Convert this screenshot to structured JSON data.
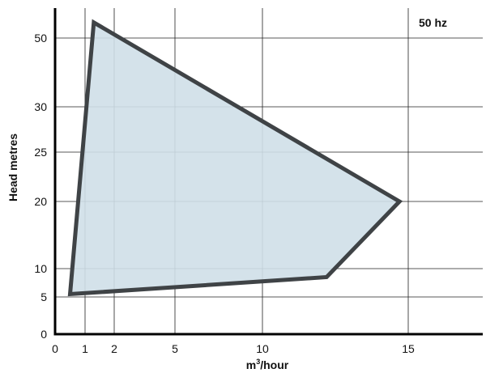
{
  "chart_data": {
    "type": "area",
    "title": "",
    "annotation": "50 hz",
    "xlabel_base": "m",
    "xlabel_sup": "3",
    "xlabel_rest": "/hour",
    "ylabel": "Head metres",
    "x_ticks": [
      0,
      1,
      2,
      5,
      10,
      15
    ],
    "y_ticks": [
      0,
      5,
      10,
      20,
      25,
      30,
      50
    ],
    "grid": true,
    "series": [
      {
        "points": [
          {
            "x": 1.3,
            "y": 53
          },
          {
            "x": 14.7,
            "y": 20
          },
          {
            "x": 12.2,
            "y": 8.5
          },
          {
            "x": 0.5,
            "y": 5.5
          }
        ]
      }
    ],
    "colors": {
      "fill": "#cfdfe8",
      "outline": "#3f4346",
      "grid": "#222222"
    }
  }
}
